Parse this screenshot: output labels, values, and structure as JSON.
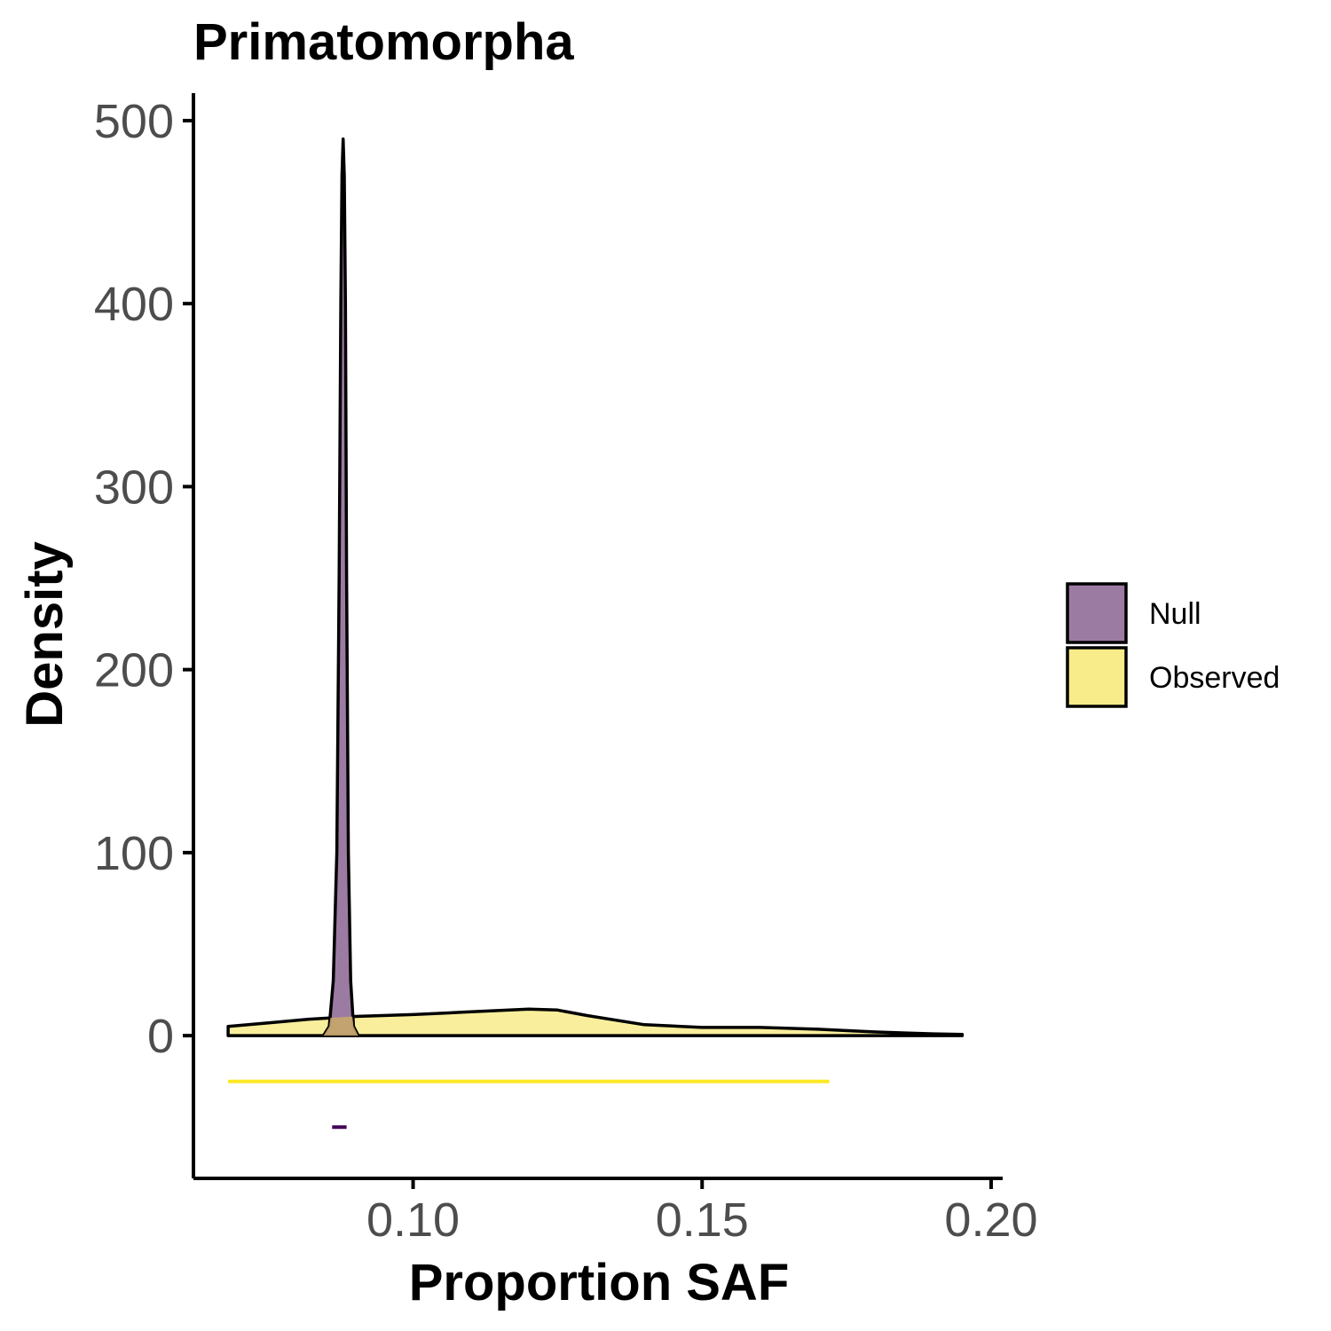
{
  "chart_data": {
    "type": "area",
    "title": "Primatomorpha",
    "xlabel": "Proportion SAF",
    "ylabel": "Density",
    "xlim": [
      0.062,
      0.202
    ],
    "ylim": [
      -78,
      515
    ],
    "x_ticks": [
      {
        "value": 0.1,
        "label": "0.10"
      },
      {
        "value": 0.15,
        "label": "0.15"
      },
      {
        "value": 0.2,
        "label": "0.20"
      }
    ],
    "y_ticks": [
      {
        "value": 0,
        "label": "0"
      },
      {
        "value": 100,
        "label": "100"
      },
      {
        "value": 200,
        "label": "200"
      },
      {
        "value": 300,
        "label": "300"
      },
      {
        "value": 400,
        "label": "400"
      },
      {
        "value": 500,
        "label": "500"
      }
    ],
    "grid": false,
    "legend": {
      "position": "right",
      "entries": [
        {
          "name": "Null",
          "color": "#9c7ba2"
        },
        {
          "name": "Observed",
          "color": "#f8eb89"
        }
      ]
    },
    "series": [
      {
        "name": "Null",
        "fill": "#9c7ba2",
        "x": [
          0.0845,
          0.0855,
          0.0862,
          0.0868,
          0.0872,
          0.0875,
          0.0877,
          0.0879,
          0.0881,
          0.0883,
          0.0885,
          0.0888,
          0.0892,
          0.0897,
          0.0905
        ],
        "y": [
          0,
          5,
          30,
          100,
          250,
          400,
          470,
          490,
          470,
          400,
          250,
          100,
          30,
          5,
          0
        ]
      },
      {
        "name": "Observed",
        "fill": "#f8eb89",
        "x": [
          0.068,
          0.075,
          0.082,
          0.09,
          0.1,
          0.11,
          0.12,
          0.125,
          0.13,
          0.14,
          0.15,
          0.16,
          0.17,
          0.18,
          0.19,
          0.195
        ],
        "y": [
          5,
          7,
          9,
          10.5,
          11.5,
          13,
          14.5,
          14,
          11,
          6,
          4.5,
          4.5,
          3.5,
          2,
          1,
          0.7
        ]
      }
    ],
    "ranges": [
      {
        "series": "Observed",
        "color": "#fde725",
        "x": [
          0.068,
          0.172
        ],
        "y": -25
      },
      {
        "series": "Null",
        "color": "#440154",
        "x": [
          0.086,
          0.0885
        ],
        "y": -50
      }
    ]
  }
}
